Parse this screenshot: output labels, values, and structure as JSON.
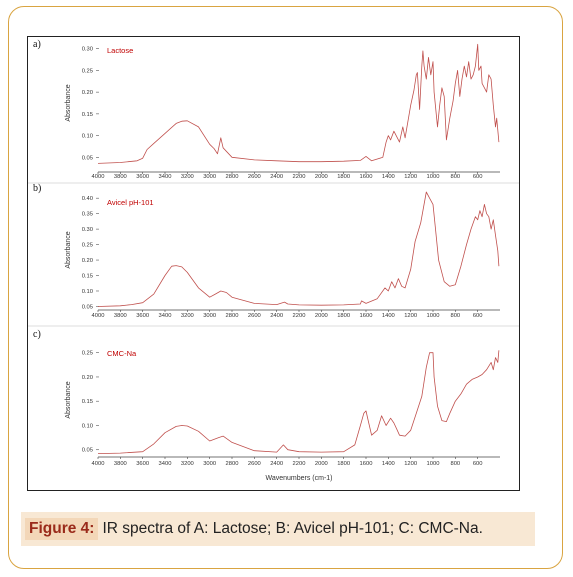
{
  "figure": {
    "caption_label": "Figure 4:",
    "caption_text": "IR spectra of A: Lactose; B: Avicel pH-101; C: CMC-Na.",
    "x_axis_title": "Wavenumbers (cm-1)",
    "y_axis_title": "Absorbance",
    "line_color": "#c0504d",
    "label_color": "#c00000"
  },
  "chart_data": [
    {
      "type": "line",
      "panel_letter": "a)",
      "series_name": "Lactose",
      "xlabel": "",
      "ylabel": "Absorbance",
      "x_reversed": true,
      "xlim": [
        4000,
        400
      ],
      "ylim": [
        0.03,
        0.32
      ],
      "x_ticks": [
        4000,
        3800,
        3600,
        3400,
        3200,
        3000,
        2800,
        2600,
        2400,
        2200,
        2000,
        1800,
        1600,
        1400,
        1200,
        1000,
        800,
        600
      ],
      "y_ticks": [
        0.05,
        0.1,
        0.15,
        0.2,
        0.25,
        0.3
      ],
      "y_tick_labels": [
        "0.05",
        "0.10",
        "0.15",
        "0.20",
        "0.25",
        "0.30"
      ],
      "x": [
        4000,
        3800,
        3650,
        3600,
        3560,
        3500,
        3400,
        3300,
        3250,
        3200,
        3100,
        3000,
        2960,
        2930,
        2900,
        2880,
        2800,
        2600,
        2400,
        2200,
        2000,
        1800,
        1650,
        1600,
        1550,
        1450,
        1420,
        1400,
        1380,
        1350,
        1300,
        1270,
        1250,
        1200,
        1170,
        1150,
        1140,
        1120,
        1100,
        1090,
        1080,
        1060,
        1040,
        1030,
        1020,
        1000,
        990,
        960,
        940,
        920,
        900,
        880,
        850,
        820,
        800,
        780,
        760,
        740,
        720,
        700,
        680,
        660,
        640,
        620,
        600,
        590,
        570,
        560,
        540,
        520,
        500,
        480,
        460,
        440,
        430,
        410
      ],
      "y": [
        0.036,
        0.038,
        0.042,
        0.048,
        0.068,
        0.082,
        0.105,
        0.128,
        0.133,
        0.134,
        0.12,
        0.08,
        0.07,
        0.058,
        0.095,
        0.072,
        0.05,
        0.044,
        0.042,
        0.04,
        0.04,
        0.041,
        0.043,
        0.052,
        0.042,
        0.05,
        0.085,
        0.1,
        0.09,
        0.11,
        0.085,
        0.12,
        0.095,
        0.17,
        0.205,
        0.24,
        0.245,
        0.16,
        0.26,
        0.295,
        0.26,
        0.23,
        0.28,
        0.26,
        0.24,
        0.27,
        0.2,
        0.12,
        0.17,
        0.21,
        0.19,
        0.09,
        0.14,
        0.18,
        0.22,
        0.25,
        0.19,
        0.23,
        0.26,
        0.235,
        0.27,
        0.23,
        0.24,
        0.26,
        0.31,
        0.25,
        0.26,
        0.22,
        0.21,
        0.2,
        0.24,
        0.23,
        0.17,
        0.12,
        0.14,
        0.085
      ]
    },
    {
      "type": "line",
      "panel_letter": "b)",
      "series_name": "Avicel pH-101",
      "xlabel": "",
      "ylabel": "Absorbance",
      "x_reversed": true,
      "xlim": [
        4000,
        400
      ],
      "ylim": [
        0.045,
        0.42
      ],
      "x_ticks": [
        4000,
        3800,
        3600,
        3400,
        3200,
        3000,
        2800,
        2600,
        2400,
        2200,
        2000,
        1800,
        1600,
        1400,
        1200,
        1000,
        800,
        600
      ],
      "y_ticks": [
        0.05,
        0.1,
        0.15,
        0.2,
        0.25,
        0.3,
        0.35,
        0.4
      ],
      "y_tick_labels": [
        "0.05",
        "0.10",
        "0.15",
        "0.20",
        "0.25",
        "0.30",
        "0.35",
        "0.40"
      ],
      "x": [
        4000,
        3800,
        3700,
        3600,
        3500,
        3400,
        3340,
        3300,
        3250,
        3200,
        3100,
        3000,
        2950,
        2900,
        2850,
        2800,
        2600,
        2400,
        2330,
        2300,
        2200,
        2000,
        1800,
        1650,
        1640,
        1600,
        1500,
        1430,
        1400,
        1370,
        1340,
        1310,
        1280,
        1250,
        1200,
        1160,
        1110,
        1060,
        1030,
        1000,
        980,
        950,
        900,
        850,
        800,
        750,
        700,
        660,
        620,
        600,
        580,
        560,
        540,
        520,
        500,
        480,
        460,
        440,
        420,
        410
      ],
      "y": [
        0.05,
        0.052,
        0.056,
        0.062,
        0.09,
        0.15,
        0.18,
        0.182,
        0.178,
        0.16,
        0.11,
        0.08,
        0.09,
        0.1,
        0.095,
        0.08,
        0.06,
        0.056,
        0.064,
        0.058,
        0.055,
        0.054,
        0.055,
        0.058,
        0.068,
        0.06,
        0.075,
        0.11,
        0.1,
        0.13,
        0.11,
        0.14,
        0.115,
        0.11,
        0.17,
        0.26,
        0.32,
        0.42,
        0.4,
        0.38,
        0.31,
        0.2,
        0.13,
        0.115,
        0.12,
        0.18,
        0.25,
        0.3,
        0.34,
        0.33,
        0.36,
        0.34,
        0.38,
        0.35,
        0.34,
        0.3,
        0.33,
        0.28,
        0.23,
        0.18
      ]
    },
    {
      "type": "line",
      "panel_letter": "c)",
      "series_name": "CMC-Na",
      "xlabel": "Wavenumbers (cm-1)",
      "ylabel": "Absorbance",
      "x_reversed": true,
      "xlim": [
        4000,
        400
      ],
      "ylim": [
        0.035,
        0.27
      ],
      "x_ticks": [
        4000,
        3800,
        3600,
        3400,
        3200,
        3000,
        2800,
        2600,
        2400,
        2200,
        2000,
        1800,
        1600,
        1400,
        1200,
        1000,
        800,
        600
      ],
      "y_ticks": [
        0.05,
        0.1,
        0.15,
        0.2,
        0.25
      ],
      "y_tick_labels": [
        "0.05",
        "0.10",
        "0.15",
        "0.20",
        "0.25"
      ],
      "x": [
        4000,
        3800,
        3600,
        3500,
        3400,
        3300,
        3250,
        3200,
        3100,
        3000,
        2920,
        2880,
        2800,
        2600,
        2400,
        2340,
        2300,
        2200,
        2000,
        1800,
        1700,
        1650,
        1620,
        1600,
        1580,
        1550,
        1500,
        1460,
        1420,
        1380,
        1350,
        1320,
        1300,
        1250,
        1200,
        1150,
        1100,
        1060,
        1030,
        1000,
        990,
        960,
        920,
        880,
        850,
        800,
        750,
        700,
        650,
        600,
        560,
        520,
        480,
        460,
        440,
        420,
        410
      ],
      "y": [
        0.042,
        0.043,
        0.046,
        0.062,
        0.085,
        0.098,
        0.1,
        0.099,
        0.088,
        0.068,
        0.075,
        0.078,
        0.065,
        0.048,
        0.045,
        0.06,
        0.05,
        0.046,
        0.045,
        0.046,
        0.06,
        0.1,
        0.125,
        0.13,
        0.11,
        0.08,
        0.09,
        0.12,
        0.1,
        0.115,
        0.105,
        0.09,
        0.08,
        0.078,
        0.09,
        0.125,
        0.16,
        0.22,
        0.25,
        0.25,
        0.2,
        0.14,
        0.11,
        0.108,
        0.125,
        0.15,
        0.165,
        0.185,
        0.195,
        0.2,
        0.205,
        0.215,
        0.23,
        0.215,
        0.24,
        0.23,
        0.255
      ]
    }
  ]
}
